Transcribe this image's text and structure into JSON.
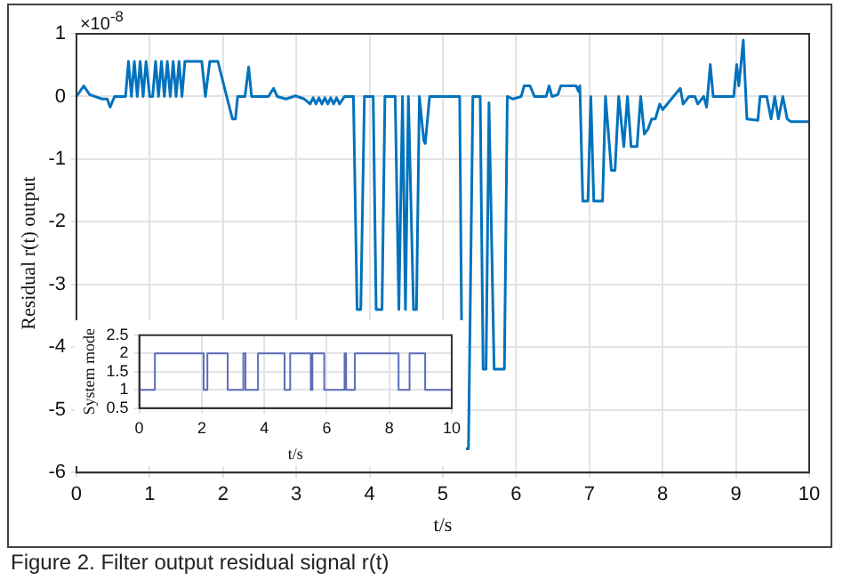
{
  "chart_data": [
    {
      "type": "line",
      "xlabel": "t/s",
      "ylabel": "Residual r(t) output",
      "color": "#0072bd",
      "grid": true,
      "xlim": [
        0,
        10
      ],
      "xticks": [
        0,
        1,
        2,
        3,
        4,
        5,
        6,
        7,
        8,
        9,
        10
      ],
      "ylim": [
        -6,
        1
      ],
      "yticks": [
        -6,
        -5,
        -4,
        -3,
        -2,
        -1,
        0,
        1
      ],
      "annotations": [
        "×10$^{-8}$",
        "Figure 2. Filter output residual signal r(t)"
      ],
      "x": [
        0,
        0.1,
        0.18,
        0.35,
        0.42,
        0.46,
        0.52,
        0.67,
        0.71,
        0.75,
        0.79,
        0.83,
        0.87,
        0.91,
        0.95,
        1.0,
        1.04,
        1.08,
        1.12,
        1.16,
        1.2,
        1.24,
        1.28,
        1.32,
        1.36,
        1.4,
        1.44,
        1.48,
        1.57,
        1.71,
        1.76,
        1.82,
        1.87,
        1.93,
        2.05,
        2.13,
        2.17,
        2.2,
        2.3,
        2.35,
        2.39,
        2.62,
        2.69,
        2.74,
        2.86,
        2.99,
        3.11,
        3.19,
        3.23,
        3.27,
        3.31,
        3.35,
        3.39,
        3.43,
        3.47,
        3.51,
        3.55,
        3.59,
        3.66,
        3.78,
        3.83,
        3.88,
        3.93,
        4.05,
        4.09,
        4.17,
        4.21,
        4.35,
        4.4,
        4.45,
        4.49,
        4.53,
        4.6,
        4.64,
        4.68,
        4.74,
        4.76,
        4.82,
        5.23,
        5.27,
        5.35,
        5.41,
        5.51,
        5.55,
        5.59,
        5.63,
        5.7,
        5.84,
        5.88,
        5.96,
        6.07,
        6.11,
        6.19,
        6.25,
        6.41,
        6.45,
        6.49,
        6.57,
        6.61,
        6.82,
        6.85,
        6.87,
        6.91,
        6.98,
        7.02,
        7.06,
        7.18,
        7.22,
        7.3,
        7.35,
        7.4,
        7.47,
        7.52,
        7.57,
        7.65,
        7.7,
        7.75,
        7.8,
        7.85,
        7.9,
        7.96,
        8.0,
        8.24,
        8.28,
        8.36,
        8.44,
        8.48,
        8.56,
        8.6,
        8.65,
        8.69,
        8.97,
        9.01,
        9.04,
        9.1,
        9.15,
        9.3,
        9.33,
        9.42,
        9.48,
        9.53,
        9.58,
        9.64,
        9.7,
        9.75,
        10
      ],
      "values": [
        0,
        0.17,
        0.03,
        -0.04,
        -0.04,
        -0.17,
        0,
        0,
        0.56,
        0,
        0.56,
        0,
        0.56,
        0,
        0.56,
        0,
        0,
        0.56,
        0,
        0.56,
        0,
        0.56,
        0,
        0.56,
        0,
        0.56,
        0,
        0.56,
        0.56,
        0.56,
        0,
        0.56,
        0.56,
        0.56,
        0,
        -0.36,
        -0.36,
        0,
        0,
        0.47,
        0,
        0,
        0.13,
        0,
        -0.04,
        0.01,
        -0.04,
        -0.12,
        -0.02,
        -0.12,
        -0.02,
        -0.12,
        -0.02,
        -0.12,
        -0.02,
        -0.12,
        -0.02,
        -0.12,
        0,
        0,
        -3.4,
        -3.4,
        0,
        0,
        -3.4,
        -3.4,
        0,
        0,
        -3.4,
        0,
        -3.4,
        0,
        -3.4,
        -3.4,
        0,
        -0.7,
        -0.75,
        0,
        0,
        -5.62,
        -5.62,
        0,
        0,
        -4.35,
        -4.35,
        -0.1,
        -4.35,
        -4.35,
        0,
        -0.04,
        0,
        0.17,
        0.17,
        0,
        0,
        0.17,
        0,
        0.03,
        0.17,
        0.17,
        0.08,
        0.17,
        -1.67,
        -1.67,
        0,
        -1.67,
        -1.67,
        0,
        -1.18,
        -1.18,
        0,
        -0.8,
        0,
        -0.8,
        -0.8,
        0,
        -0.6,
        -0.52,
        -0.36,
        -0.36,
        -0.12,
        -0.21,
        0.13,
        -0.12,
        0,
        0,
        -0.12,
        0,
        -0.17,
        0.51,
        0,
        0,
        0.51,
        0.17,
        0.9,
        -0.36,
        -0.38,
        0,
        0,
        -0.36,
        0,
        -0.36,
        0,
        -0.36,
        -0.4,
        -0.4
      ]
    },
    {
      "type": "step",
      "xlabel": "t/s",
      "ylabel": "System mode",
      "color": "#5b6bb8",
      "grid": true,
      "xlim": [
        0,
        10
      ],
      "xticks": [
        0,
        2,
        4,
        6,
        8,
        10
      ],
      "ylim": [
        0.5,
        2.5
      ],
      "yticks": [
        0.5,
        1,
        1.5,
        2,
        2.5
      ],
      "x": [
        0,
        0.5,
        2.06,
        2.18,
        2.83,
        3.33,
        3.4,
        3.8,
        4.65,
        4.83,
        5.49,
        5.54,
        5.92,
        6.57,
        6.62,
        6.9,
        8.3,
        8.65,
        9.15,
        10
      ],
      "values": [
        1,
        2,
        1,
        2,
        1,
        2,
        1,
        2,
        1,
        2,
        1,
        2,
        1,
        2,
        1,
        2,
        1,
        2,
        1,
        1
      ]
    }
  ]
}
